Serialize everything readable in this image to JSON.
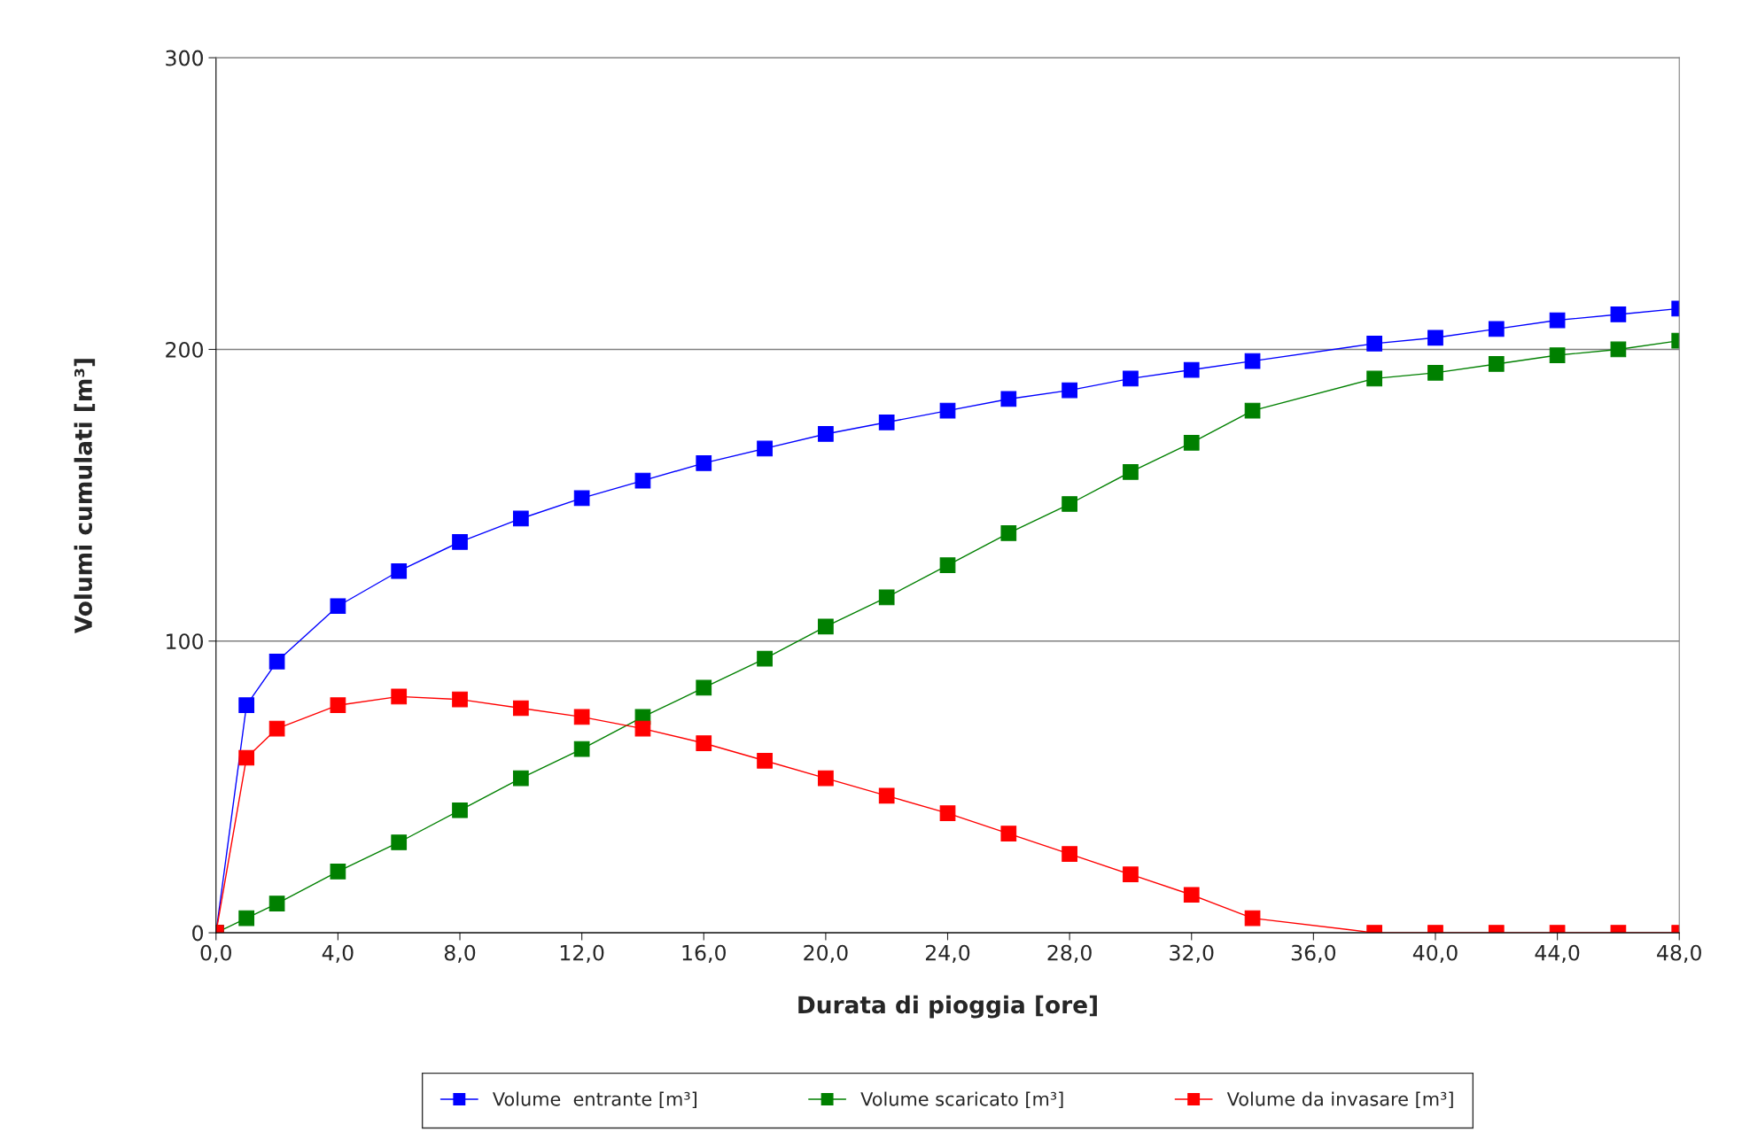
{
  "chart_data": {
    "type": "line",
    "xlabel": "Durata di pioggia [ore]",
    "ylabel": "Volumi cumulati [m³]",
    "x": [
      0,
      1,
      2,
      4,
      6,
      8,
      10,
      12,
      14,
      16,
      18,
      20,
      22,
      24,
      26,
      28,
      30,
      32,
      34,
      38,
      40,
      42,
      44,
      46,
      48
    ],
    "series": [
      {
        "name": "Volume  entrante [m³]",
        "color": "#0000ff",
        "values": [
          0,
          78,
          93,
          112,
          124,
          134,
          142,
          149,
          155,
          161,
          166,
          171,
          175,
          179,
          183,
          186,
          190,
          193,
          196,
          202,
          204,
          207,
          210,
          212,
          214
        ]
      },
      {
        "name": "Volume scaricato [m³]",
        "color": "#008000",
        "values": [
          0,
          5,
          10,
          21,
          31,
          42,
          53,
          63,
          74,
          84,
          94,
          105,
          115,
          126,
          137,
          147,
          158,
          168,
          179,
          190,
          192,
          195,
          198,
          200,
          203
        ]
      },
      {
        "name": "Volume da invasare [m³]",
        "color": "#ff0000",
        "values": [
          0,
          60,
          70,
          78,
          81,
          80,
          77,
          74,
          70,
          65,
          59,
          53,
          47,
          41,
          34,
          27,
          20,
          13,
          5,
          0,
          0,
          0,
          0,
          0,
          0
        ]
      }
    ],
    "xlim": [
      0,
      48
    ],
    "ylim": [
      0,
      300
    ],
    "xticks": [
      {
        "value": 0,
        "label": "0,0"
      },
      {
        "value": 4,
        "label": "4,0"
      },
      {
        "value": 8,
        "label": "8,0"
      },
      {
        "value": 12,
        "label": "12,0"
      },
      {
        "value": 16,
        "label": "16,0"
      },
      {
        "value": 20,
        "label": "20,0"
      },
      {
        "value": 24,
        "label": "24,0"
      },
      {
        "value": 28,
        "label": "28,0"
      },
      {
        "value": 32,
        "label": "32,0"
      },
      {
        "value": 36,
        "label": "36,0"
      },
      {
        "value": 40,
        "label": "40,0"
      },
      {
        "value": 44,
        "label": "44,0"
      },
      {
        "value": 48,
        "label": "48,0"
      }
    ],
    "yticks": [
      0,
      100,
      200,
      300
    ],
    "grid": "y",
    "legend": "bottom",
    "marker": "square",
    "line_style": "solid"
  }
}
